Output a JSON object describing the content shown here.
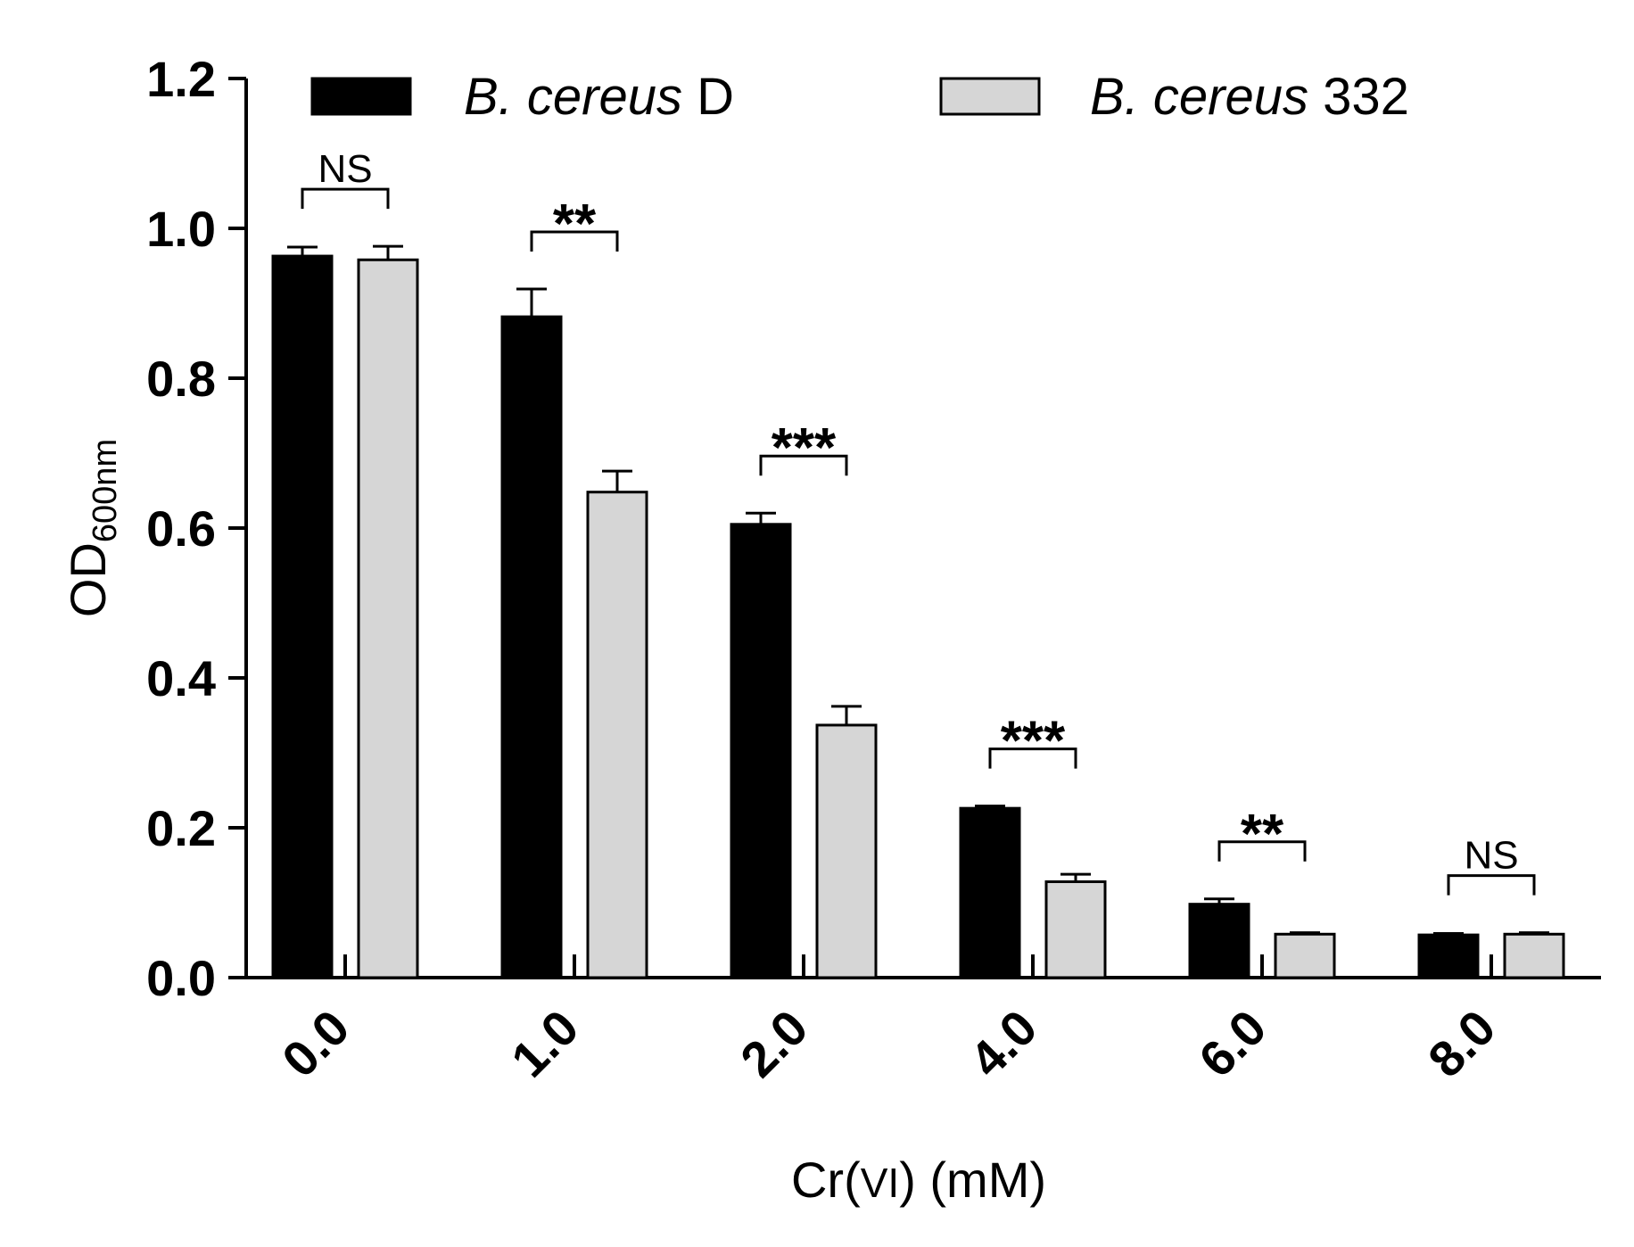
{
  "chart_data": {
    "type": "bar",
    "title": "",
    "xlabel": "Cr(VI) (mM)",
    "xlabel_parts": {
      "pre": "Cr(",
      "roman": "VI",
      "post": ") (mM)"
    },
    "ylabel": "OD600nm",
    "ylabel_parts": {
      "main": "OD",
      "sub": "600nm"
    },
    "ylim": [
      0,
      1.2
    ],
    "yticks": [
      "0.0",
      "0.2",
      "0.4",
      "0.6",
      "0.8",
      "1.0",
      "1.2"
    ],
    "categories": [
      "0.0",
      "1.0",
      "2.0",
      "4.0",
      "6.0",
      "8.0"
    ],
    "series": [
      {
        "name": "B. cereus D",
        "name_italic": "B. cereus",
        "name_rest": " D",
        "color": "#000000",
        "values": [
          0.963,
          0.882,
          0.605,
          0.226,
          0.098,
          0.057
        ],
        "errors": [
          0.012,
          0.037,
          0.015,
          0.003,
          0.007,
          0.002
        ]
      },
      {
        "name": "B. cereus 332",
        "name_italic": "B. cereus",
        "name_rest": " 332",
        "color": "#d6d6d6",
        "values": [
          0.958,
          0.648,
          0.337,
          0.128,
          0.058,
          0.058
        ],
        "errors": [
          0.018,
          0.028,
          0.025,
          0.01,
          0.002,
          0.002
        ]
      }
    ],
    "significance": [
      "NS",
      "**",
      "***",
      "***",
      "**",
      "NS"
    ],
    "legend": {
      "placement": "top",
      "orientation": "horizontal"
    },
    "grid": false
  }
}
